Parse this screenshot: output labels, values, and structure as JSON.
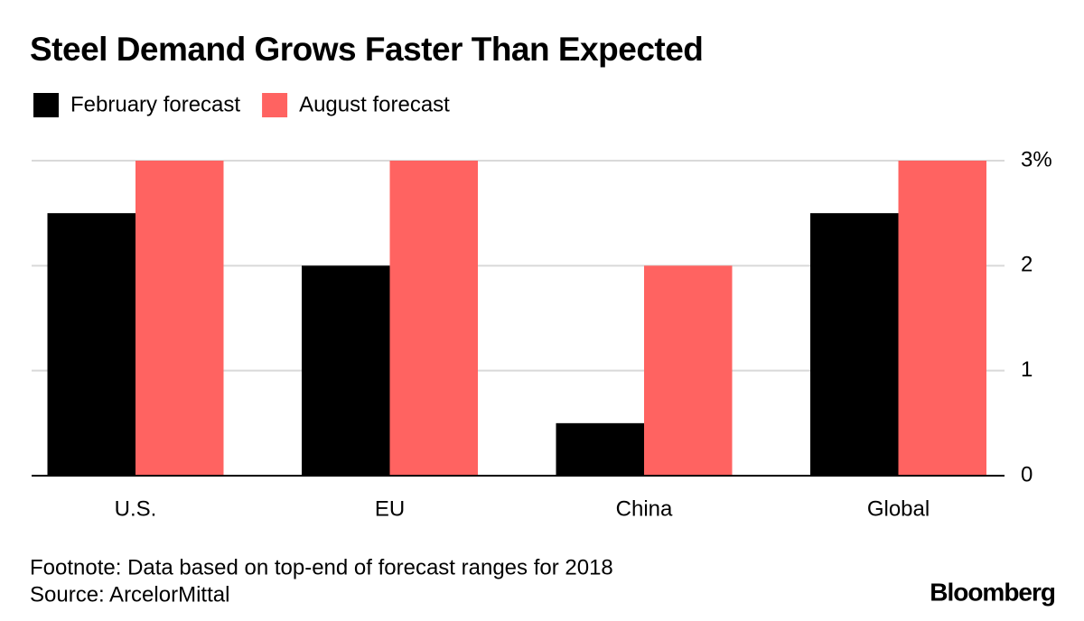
{
  "chart_data": {
    "type": "bar",
    "title": "Steel Demand Grows Faster Than Expected",
    "categories": [
      "U.S.",
      "EU",
      "China",
      "Global"
    ],
    "series": [
      {
        "name": "February forecast",
        "color": "#000000",
        "values": [
          2.5,
          2,
          0.5,
          2.5
        ]
      },
      {
        "name": "August forecast",
        "color": "#ff6361",
        "values": [
          3,
          3,
          2,
          3
        ]
      }
    ],
    "ylim": [
      0,
      3
    ],
    "yticks": [
      0,
      1,
      2,
      {
        "value": 3,
        "label": "3%"
      }
    ],
    "grid": true,
    "footnote": "Footnote: Data based on top-end of forecast ranges for 2018",
    "source": "Source: ArcelorMittal",
    "brand": "Bloomberg"
  }
}
